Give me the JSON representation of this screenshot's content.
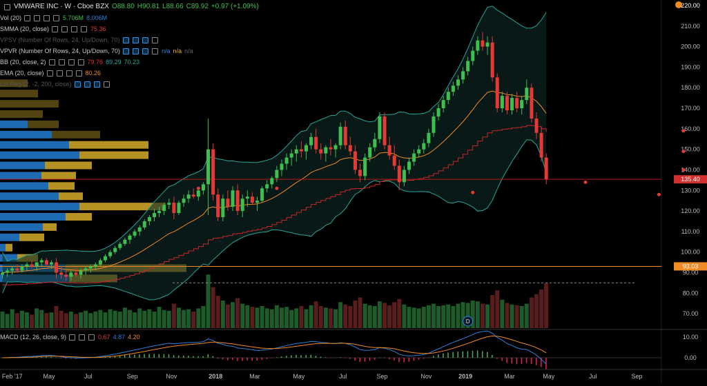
{
  "header": {
    "symbol": "VMWARE INC · W · Cboe BZX",
    "ohlc": {
      "o": "O88.80",
      "h": "H90.81",
      "l": "L88.66",
      "c": "C89.92",
      "chg": "+0.97 (+1.09%)"
    }
  },
  "indicators": [
    {
      "name": "Vol (20)",
      "vals": [
        "5.706M",
        "8.006M"
      ],
      "colors": [
        "#3fbf4f",
        "#2f7fd8"
      ]
    },
    {
      "name": "SMMA (20, close)",
      "vals": [
        "75.36"
      ],
      "colors": [
        "#e53935"
      ]
    },
    {
      "name": "VPSV (Number Of Rows, 24, Up/Down, 70)",
      "vals": [],
      "colors": []
    },
    {
      "name": "VPVR (Number Of Rows, 24, Up/Down, 70)",
      "vals": [
        "n/a",
        "n/a",
        "n/a"
      ],
      "colors": [
        "#2f7fd8",
        "#f0b429",
        "#666666"
      ]
    },
    {
      "name": "BB (20, close, 2)",
      "vals": [
        "79.76",
        "89.29",
        "70.23"
      ],
      "colors": [
        "#e53935",
        "#26a69a",
        "#26a69a"
      ]
    },
    {
      "name": "EMA (20, close)",
      "vals": [
        "80.26"
      ],
      "colors": [
        "#f08a24"
      ]
    },
    {
      "name": "Lin Reg (2, -2, 200, close)",
      "vals": [],
      "colors": []
    }
  ],
  "macd_header": {
    "name": "MACD (12, 26, close, 9)",
    "vals": [
      "0.67",
      "4.87",
      "4.20"
    ],
    "colors": [
      "#e53935",
      "#2f7fd8",
      "#f08a24"
    ]
  },
  "price_axis": [
    "210.00",
    "200.00",
    "190.00",
    "180.00",
    "170.00",
    "160.00",
    "150.00",
    "140.00",
    "130.00",
    "120.00",
    "110.00",
    "100.00",
    "90.00",
    "80.00",
    "70.00"
  ],
  "price_tags": [
    {
      "label": "220.00",
      "value": 220,
      "color": "#000000"
    },
    {
      "label": "135.40",
      "value": 135.4,
      "color": "#d32f2f"
    },
    {
      "label": "93.03",
      "value": 93.03,
      "color": "#f08a24"
    }
  ],
  "macd_axis": [
    "10.00",
    "0.00"
  ],
  "time_axis": [
    "5 Feb '17",
    "May",
    "Jul",
    "Sep",
    "Nov",
    "2018",
    "Mar",
    "May",
    "Jul",
    "Sep",
    "Nov",
    "2019",
    "Mar",
    "May",
    "Jul",
    "Sep"
  ],
  "dividend_marker": "D",
  "chart_data": {
    "type": "candlestick",
    "price_range": [
      65,
      220
    ],
    "x_range": [
      0,
      135
    ],
    "month_ticks": [
      1,
      10,
      18,
      27,
      35,
      44,
      52,
      61,
      70,
      78,
      87,
      95,
      104,
      112,
      121,
      130
    ],
    "candles": [
      [
        89,
        91,
        87,
        90
      ],
      [
        90,
        92,
        88,
        91
      ],
      [
        91,
        93,
        89,
        92
      ],
      [
        92,
        94,
        90,
        91
      ],
      [
        91,
        94,
        90,
        93
      ],
      [
        93,
        95,
        91,
        94
      ],
      [
        94,
        96,
        92,
        93
      ],
      [
        93,
        95,
        91,
        95
      ],
      [
        95,
        97,
        93,
        96
      ],
      [
        96,
        97,
        93,
        94
      ],
      [
        94,
        96,
        92,
        95
      ],
      [
        95,
        97,
        87,
        90
      ],
      [
        90,
        93,
        87,
        89
      ],
      [
        89,
        91,
        86,
        88
      ],
      [
        88,
        91,
        86,
        90
      ],
      [
        90,
        92,
        88,
        89
      ],
      [
        89,
        92,
        87,
        91
      ],
      [
        91,
        93,
        89,
        92
      ],
      [
        92,
        94,
        90,
        93
      ],
      [
        93,
        95,
        91,
        94
      ],
      [
        94,
        97,
        93,
        96
      ],
      [
        96,
        99,
        95,
        98
      ],
      [
        98,
        101,
        97,
        100
      ],
      [
        100,
        103,
        99,
        102
      ],
      [
        102,
        105,
        101,
        104
      ],
      [
        104,
        107,
        103,
        106
      ],
      [
        106,
        109,
        104,
        108
      ],
      [
        108,
        111,
        107,
        110
      ],
      [
        110,
        113,
        108,
        112
      ],
      [
        112,
        116,
        111,
        115
      ],
      [
        115,
        118,
        113,
        117
      ],
      [
        117,
        121,
        115,
        119
      ],
      [
        119,
        122,
        117,
        120
      ],
      [
        120,
        124,
        118,
        123
      ],
      [
        123,
        126,
        121,
        124
      ],
      [
        124,
        127,
        116,
        119
      ],
      [
        119,
        125,
        118,
        124
      ],
      [
        124,
        128,
        122,
        126
      ],
      [
        126,
        130,
        124,
        128
      ],
      [
        128,
        131,
        126,
        127
      ],
      [
        127,
        131,
        125,
        130
      ],
      [
        130,
        134,
        128,
        133
      ],
      [
        133,
        165,
        118,
        150
      ],
      [
        150,
        153,
        125,
        128
      ],
      [
        128,
        131,
        115,
        117
      ],
      [
        117,
        128,
        115,
        126
      ],
      [
        126,
        130,
        120,
        122
      ],
      [
        122,
        132,
        120,
        130
      ],
      [
        130,
        133,
        118,
        120
      ],
      [
        120,
        128,
        117,
        126
      ],
      [
        126,
        130,
        122,
        127
      ],
      [
        127,
        129,
        123,
        124
      ],
      [
        124,
        127,
        120,
        125
      ],
      [
        125,
        132,
        124,
        131
      ],
      [
        131,
        135,
        129,
        133
      ],
      [
        133,
        137,
        131,
        136
      ],
      [
        136,
        142,
        134,
        140
      ],
      [
        140,
        145,
        137,
        143
      ],
      [
        143,
        148,
        140,
        146
      ],
      [
        146,
        150,
        142,
        148
      ],
      [
        148,
        152,
        144,
        150
      ],
      [
        150,
        154,
        146,
        149
      ],
      [
        149,
        153,
        145,
        152
      ],
      [
        152,
        158,
        150,
        156
      ],
      [
        156,
        160,
        148,
        150
      ],
      [
        150,
        153,
        145,
        148
      ],
      [
        148,
        152,
        144,
        151
      ],
      [
        151,
        155,
        147,
        150
      ],
      [
        150,
        153,
        146,
        152
      ],
      [
        152,
        163,
        150,
        161
      ],
      [
        161,
        164,
        150,
        152
      ],
      [
        152,
        156,
        147,
        149
      ],
      [
        149,
        152,
        138,
        140
      ],
      [
        140,
        143,
        134,
        137
      ],
      [
        137,
        148,
        135,
        146
      ],
      [
        146,
        153,
        144,
        151
      ],
      [
        151,
        158,
        149,
        155
      ],
      [
        155,
        168,
        153,
        166
      ],
      [
        166,
        168,
        150,
        152
      ],
      [
        152,
        156,
        145,
        147
      ],
      [
        147,
        152,
        140,
        142
      ],
      [
        142,
        145,
        130,
        134
      ],
      [
        134,
        142,
        132,
        140
      ],
      [
        140,
        146,
        138,
        144
      ],
      [
        144,
        150,
        142,
        148
      ],
      [
        148,
        152,
        146,
        150
      ],
      [
        150,
        155,
        148,
        153
      ],
      [
        153,
        160,
        151,
        158
      ],
      [
        158,
        168,
        156,
        166
      ],
      [
        166,
        172,
        164,
        170
      ],
      [
        170,
        176,
        168,
        174
      ],
      [
        174,
        180,
        172,
        178
      ],
      [
        178,
        183,
        176,
        181
      ],
      [
        181,
        186,
        179,
        184
      ],
      [
        184,
        190,
        182,
        188
      ],
      [
        188,
        195,
        186,
        193
      ],
      [
        193,
        200,
        191,
        198
      ],
      [
        198,
        205,
        196,
        203
      ],
      [
        203,
        207,
        198,
        200
      ],
      [
        200,
        205,
        196,
        202
      ],
      [
        202,
        205,
        183,
        185
      ],
      [
        185,
        187,
        168,
        170
      ],
      [
        170,
        178,
        168,
        176
      ],
      [
        176,
        178,
        167,
        169
      ],
      [
        169,
        177,
        167,
        175
      ],
      [
        175,
        178,
        168,
        170
      ],
      [
        170,
        176,
        167,
        174
      ],
      [
        174,
        184,
        172,
        180
      ],
      [
        180,
        182,
        163,
        165
      ],
      [
        165,
        168,
        155,
        158
      ],
      [
        158,
        161,
        144,
        146
      ],
      [
        146,
        148,
        133,
        135.4
      ]
    ],
    "volume_millions": [
      2.1,
      1.8,
      2.4,
      1.9,
      2.2,
      2.0,
      1.7,
      2.5,
      2.3,
      1.9,
      2.0,
      2.8,
      2.2,
      1.9,
      2.1,
      1.8,
      2.0,
      2.2,
      1.9,
      2.1,
      2.3,
      2.0,
      2.4,
      2.2,
      2.1,
      2.6,
      2.3,
      2.0,
      2.5,
      2.2,
      2.4,
      2.1,
      2.7,
      2.3,
      2.2,
      3.1,
      2.6,
      2.3,
      2.4,
      2.1,
      2.5,
      2.8,
      6.8,
      5.2,
      4.1,
      3.5,
      3.0,
      3.3,
      3.8,
      3.1,
      2.9,
      2.7,
      2.6,
      2.8,
      2.5,
      2.4,
      2.9,
      2.6,
      2.7,
      2.3,
      2.5,
      2.8,
      2.4,
      2.9,
      3.4,
      2.8,
      2.6,
      2.5,
      2.4,
      3.3,
      3.0,
      2.8,
      3.5,
      3.9,
      3.1,
      2.9,
      2.8,
      3.4,
      3.2,
      2.9,
      3.3,
      3.7,
      3.0,
      2.7,
      2.6,
      2.5,
      2.7,
      2.9,
      3.1,
      2.8,
      2.9,
      3.0,
      2.8,
      3.1,
      3.3,
      3.2,
      3.5,
      3.4,
      3.1,
      3.0,
      4.2,
      4.8,
      3.6,
      3.2,
      3.0,
      2.9,
      2.8,
      3.1,
      3.9,
      4.3,
      4.9,
      5.7
    ],
    "volume_profile_left": [
      {
        "price": 182,
        "up": 0,
        "down": 40
      },
      {
        "price": 177,
        "up": 0,
        "down": 55
      },
      {
        "price": 172,
        "up": 0,
        "down": 85
      },
      {
        "price": 167,
        "up": 0,
        "down": 62
      },
      {
        "price": 162,
        "up": 40,
        "down": 45
      },
      {
        "price": 157,
        "up": 75,
        "down": 70
      },
      {
        "price": 152,
        "up": 100,
        "down": 115
      },
      {
        "price": 147,
        "up": 115,
        "down": 100
      },
      {
        "price": 142,
        "up": 65,
        "down": 68
      },
      {
        "price": 137,
        "up": 60,
        "down": 50
      },
      {
        "price": 132,
        "up": 70,
        "down": 38
      },
      {
        "price": 127,
        "up": 85,
        "down": 35
      },
      {
        "price": 122,
        "up": 115,
        "down": 125
      },
      {
        "price": 117,
        "up": 95,
        "down": 38
      },
      {
        "price": 112,
        "up": 62,
        "down": 20
      },
      {
        "price": 107,
        "up": 28,
        "down": 36
      },
      {
        "price": 102,
        "up": 8,
        "down": 10
      },
      {
        "price": 97,
        "up": 25,
        "down": 30
      },
      {
        "price": 92,
        "up": 95,
        "down": 175
      },
      {
        "price": 87,
        "up": 100,
        "down": 70
      }
    ],
    "key_levels": [
      93.03,
      135.4
    ],
    "macd_range": [
      -5,
      13
    ],
    "note": ""
  }
}
